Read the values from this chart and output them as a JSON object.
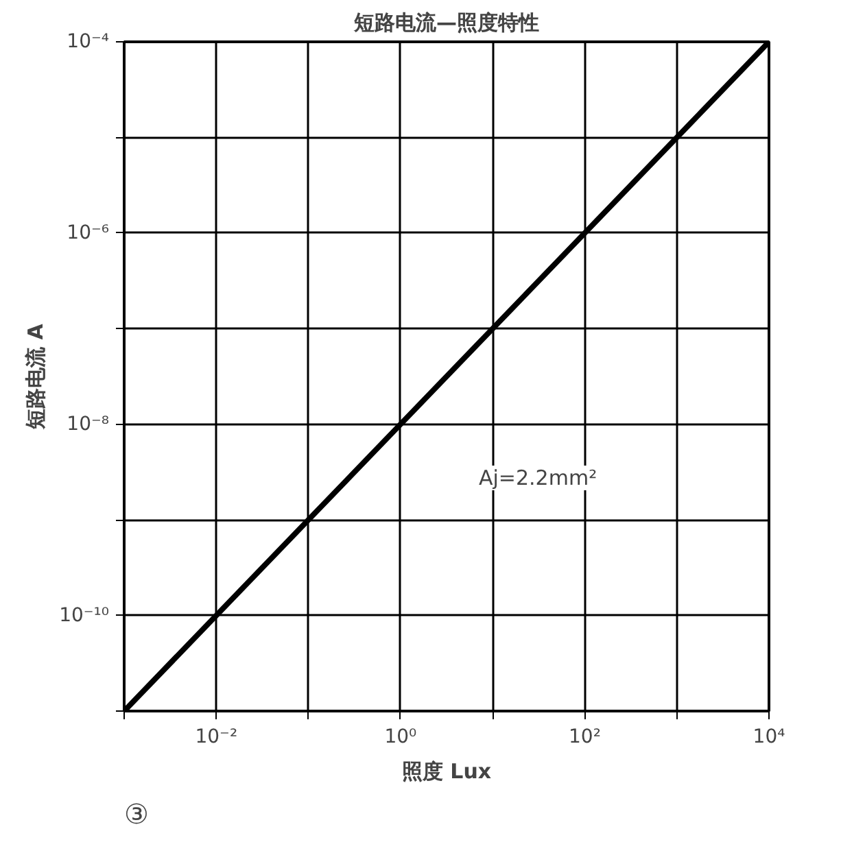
{
  "chart_data": {
    "type": "line",
    "title": "短路电流—照度特性",
    "xlabel": "照度 Lux",
    "ylabel": "短路电流 A",
    "log": "xy",
    "grid": true,
    "marker": "none",
    "line_style": "solid",
    "xlim": [
      0.001,
      10000
    ],
    "ylim": [
      1e-11,
      0.0001
    ],
    "xticks": [
      {
        "value": 0.001,
        "label": null
      },
      {
        "value": 0.01,
        "label": "10⁻²"
      },
      {
        "value": 0.1,
        "label": null
      },
      {
        "value": 1,
        "label": "10⁰"
      },
      {
        "value": 10,
        "label": null
      },
      {
        "value": 100,
        "label": "10²"
      },
      {
        "value": 1000,
        "label": null
      },
      {
        "value": 10000,
        "label": "10⁴"
      }
    ],
    "yticks": [
      {
        "value": 1e-11,
        "label": null
      },
      {
        "value": 1e-10,
        "label": "10⁻¹⁰"
      },
      {
        "value": 1e-09,
        "label": null
      },
      {
        "value": 1e-08,
        "label": "10⁻⁸"
      },
      {
        "value": 1e-07,
        "label": null
      },
      {
        "value": 1e-06,
        "label": "10⁻⁶"
      },
      {
        "value": 1e-05,
        "label": null
      },
      {
        "value": 0.0001,
        "label": "10⁻⁴"
      }
    ],
    "x": [
      0.001,
      1,
      10000
    ],
    "series": [
      {
        "color": "#000000",
        "values": [
          1e-11,
          1e-08,
          0.0001
        ]
      }
    ],
    "annotations": [
      "Aj=2.2mm²",
      "③"
    ]
  }
}
